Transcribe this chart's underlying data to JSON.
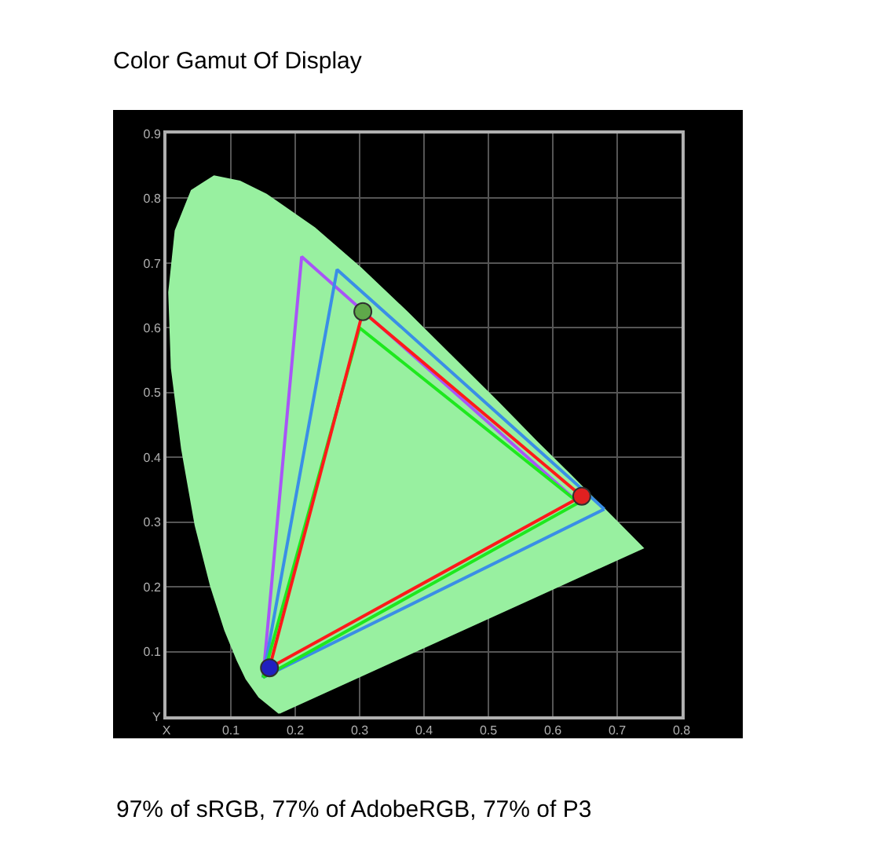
{
  "chart_data": {
    "type": "line",
    "title": "Color Gamut Of Display",
    "annotations": [
      "97% of sRGB, 77% of AdobeRGB, 77% of P3"
    ],
    "xlim": [
      0,
      0.8
    ],
    "ylim": [
      0,
      0.9
    ],
    "xticks": [
      {
        "value": 0,
        "label": "X"
      },
      0.1,
      0.2,
      0.3,
      0.4,
      0.5,
      0.6,
      0.7,
      0.8
    ],
    "yticks": [
      {
        "value": 0,
        "label": "Y"
      },
      0.1,
      0.2,
      0.3,
      0.4,
      0.5,
      0.6,
      0.7,
      0.8,
      0.9
    ],
    "grid": true,
    "series": [
      {
        "type": "area",
        "color": "#98f0a0",
        "x": [
          0.175,
          0.144,
          0.124,
          0.11,
          0.091,
          0.069,
          0.045,
          0.024,
          0.008,
          0.004,
          0.014,
          0.039,
          0.074,
          0.114,
          0.155,
          0.23,
          0.302,
          0.373,
          0.444,
          0.513,
          0.575,
          0.627,
          0.692,
          0.74,
          0.175
        ],
        "values": [
          0.005,
          0.03,
          0.058,
          0.087,
          0.133,
          0.201,
          0.295,
          0.413,
          0.538,
          0.655,
          0.75,
          0.812,
          0.834,
          0.826,
          0.806,
          0.754,
          0.692,
          0.625,
          0.555,
          0.487,
          0.424,
          0.373,
          0.308,
          0.26,
          0.005
        ]
      },
      {
        "color": "#a855f7",
        "x": [
          0.15,
          0.21,
          0.64
        ],
        "values": [
          0.06,
          0.71,
          0.33
        ]
      },
      {
        "color": "#3a8ee6",
        "x": [
          0.15,
          0.265,
          0.68
        ],
        "values": [
          0.06,
          0.69,
          0.32
        ]
      },
      {
        "color": "#3a8ee6",
        "x": [
          0.15,
          0.68
        ],
        "values": [
          0.06,
          0.32
        ]
      },
      {
        "color": "#1ee81e",
        "x": [
          0.15,
          0.3,
          0.64
        ],
        "values": [
          0.06,
          0.6,
          0.33
        ]
      },
      {
        "color": "#1ee81e",
        "x": [
          0.15,
          0.64
        ],
        "values": [
          0.06,
          0.33
        ]
      },
      {
        "color": "#ff1a1a",
        "x": [
          0.16,
          0.305,
          0.645
        ],
        "values": [
          0.075,
          0.625,
          0.34
        ]
      },
      {
        "color": "#ff1a1a",
        "x": [
          0.16,
          0.645
        ],
        "values": [
          0.075,
          0.34
        ]
      },
      {
        "type": "scatter",
        "colors": [
          "#5fa84a",
          "#e02020",
          "#2020c0"
        ],
        "x": [
          0.305,
          0.645,
          0.16
        ],
        "values": [
          0.625,
          0.34,
          0.075
        ]
      }
    ]
  }
}
